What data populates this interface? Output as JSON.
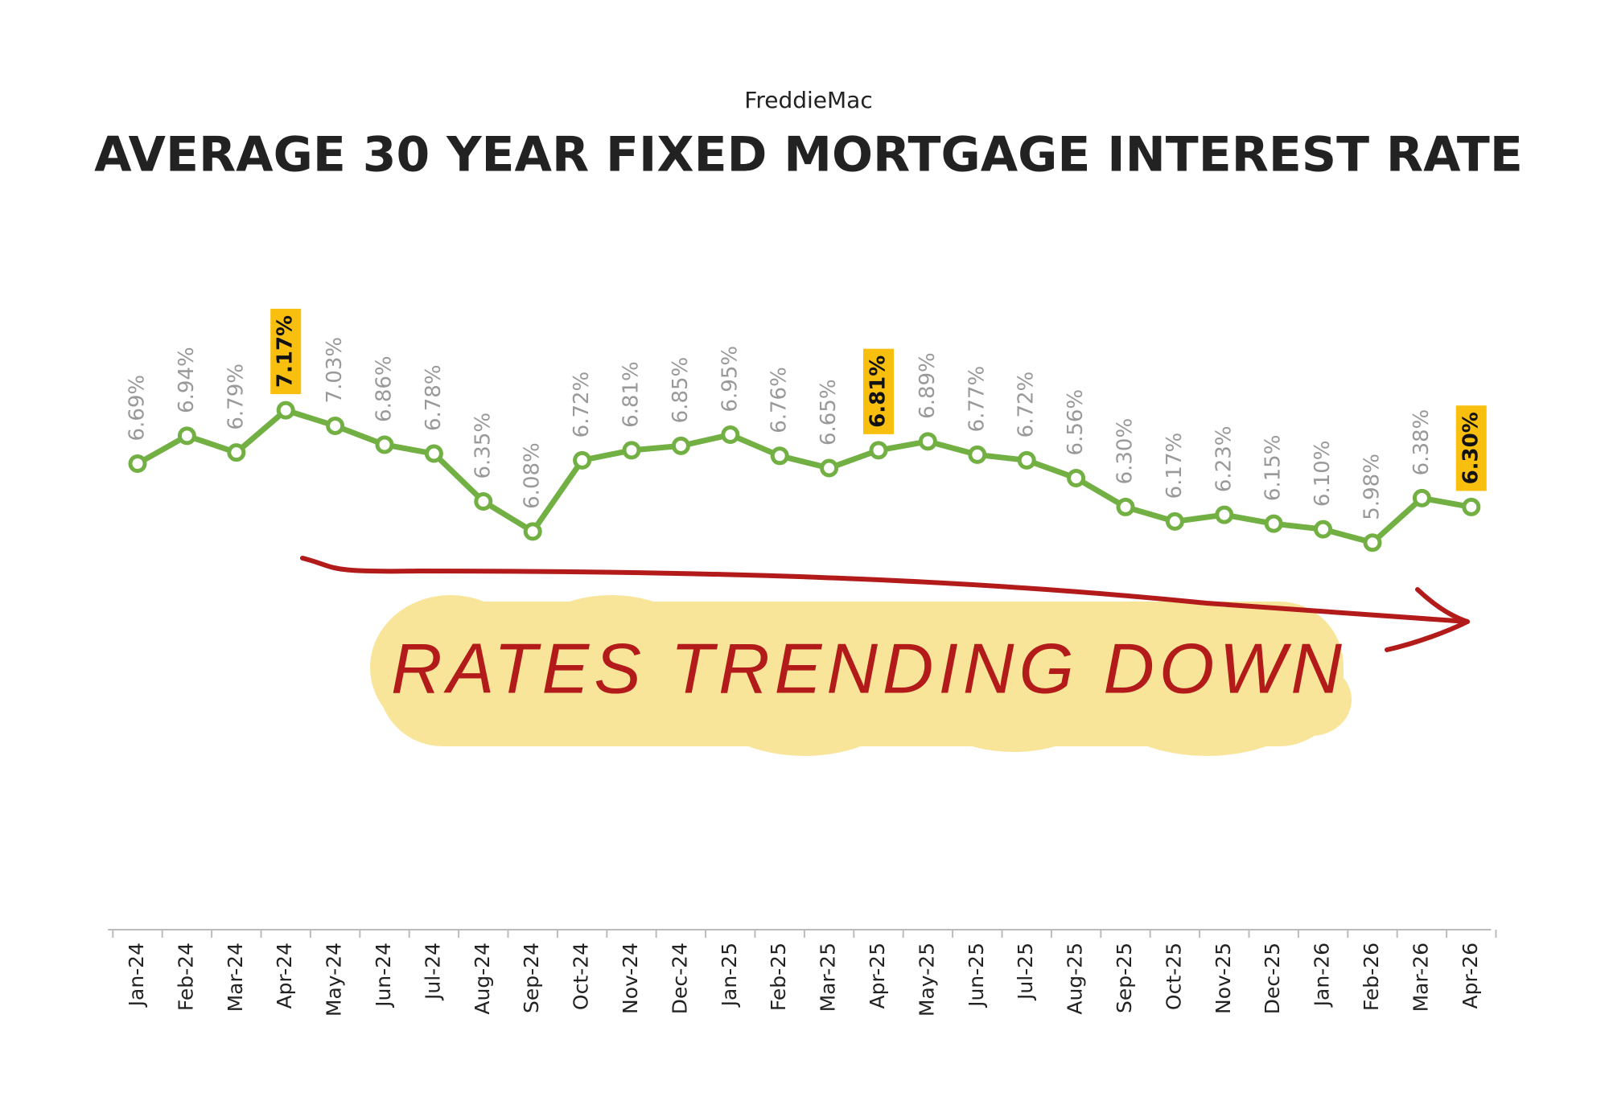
{
  "chart_data": {
    "type": "line",
    "subtitle": "FreddieMac",
    "title": "AVERAGE 30 YEAR FIXED MORTGAGE INTEREST RATE",
    "categories": [
      "Jan-24",
      "Feb-24",
      "Mar-24",
      "Apr-24",
      "May-24",
      "Jun-24",
      "Jul-24",
      "Aug-24",
      "Sep-24",
      "Oct-24",
      "Nov-24",
      "Dec-24",
      "Jan-25",
      "Feb-25",
      "Mar-25",
      "Apr-25",
      "May-25",
      "Jun-25",
      "Jul-25",
      "Aug-25",
      "Sep-25",
      "Oct-25",
      "Nov-25",
      "Dec-25",
      "Jan-26",
      "Feb-26",
      "Mar-26",
      "Apr-26"
    ],
    "values": [
      6.69,
      6.94,
      6.79,
      7.17,
      7.03,
      6.86,
      6.78,
      6.35,
      6.08,
      6.72,
      6.81,
      6.85,
      6.95,
      6.76,
      6.65,
      6.81,
      6.89,
      6.77,
      6.72,
      6.56,
      6.3,
      6.17,
      6.23,
      6.15,
      6.1,
      5.98,
      6.38,
      6.3
    ],
    "value_labels": [
      "6.69%",
      "6.94%",
      "6.79%",
      "7.17%",
      "7.03%",
      "6.86%",
      "6.78%",
      "6.35%",
      "6.08%",
      "6.72%",
      "6.81%",
      "6.85%",
      "6.95%",
      "6.76%",
      "6.65%",
      "6.81%",
      "6.89%",
      "6.77%",
      "6.72%",
      "6.56%",
      "6.30%",
      "6.17%",
      "6.23%",
      "6.15%",
      "6.10%",
      "5.98%",
      "6.38%",
      "6.30%"
    ],
    "highlighted": [
      3,
      15,
      27
    ],
    "highlight_color": "#f9bf0f",
    "color": "#72b043",
    "ylim": [
      2.5,
      9
    ],
    "annotation": "RATES TRENDING DOWN"
  }
}
